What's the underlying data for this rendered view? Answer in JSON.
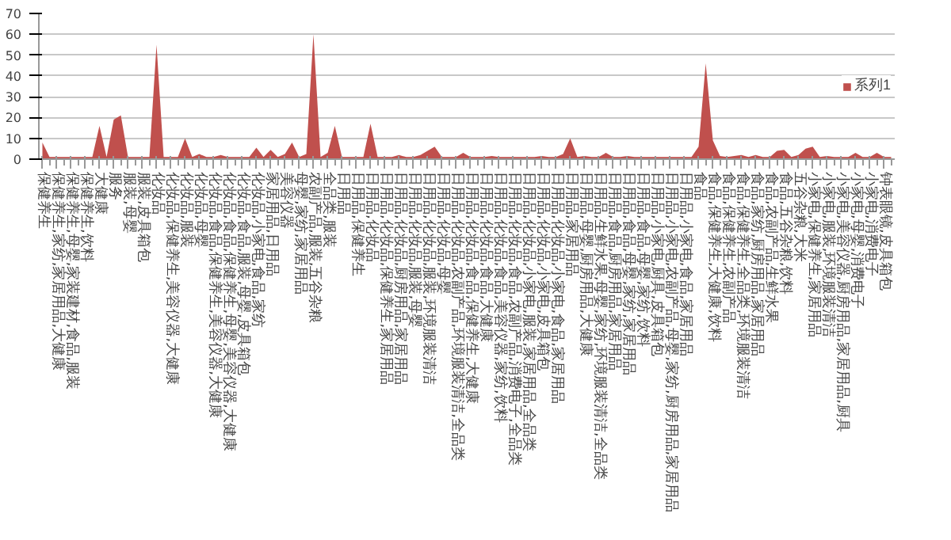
{
  "chart_data": {
    "type": "area",
    "categories": [
      "保健养生",
      null,
      "保健养生,家纺,家居用品,大健康",
      null,
      "保健养生,母婴,家装建材,食品,服装",
      null,
      "保健养生,饮料",
      null,
      "大健康",
      null,
      "服务",
      null,
      "服装,母婴",
      null,
      "服装,皮具箱包",
      null,
      "化妆品",
      null,
      "化妆品,保健养生,美容仪器,大健康",
      null,
      "化妆品,服装",
      null,
      "化妆品,母婴",
      null,
      "化妆品,食品,保健养生,美容仪器,大健康",
      null,
      "化妆品,食品,保健养生,母婴,美容仪器,大健康",
      null,
      "化妆品,食品,服装,母婴,皮具箱包",
      null,
      "化妆品,小家电,食品,家纺",
      null,
      "家居用品,日用品",
      null,
      "美容仪器",
      null,
      "母婴,家纺,家居用品",
      null,
      "农副产品,服装,五谷杂粮",
      null,
      "全品类,服装",
      null,
      "日用品",
      null,
      "日用品,保健养生",
      null,
      "日用品,化妆品",
      null,
      "日用品,化妆品,保健养生,家居用品",
      null,
      "日用品,化妆品,厨房用品,家居用品",
      null,
      "日用品,化妆品,服装,母婴",
      null,
      "日用品,化妆品,服装,环境服装清洁",
      null,
      "日用品,化妆品,母婴",
      null,
      "日用品,化妆品,农副产品,环境服装清洁,全品类",
      null,
      "日用品,化妆品,食品,保健养生,大健康",
      null,
      "日用品,化妆品,食品,大健康",
      null,
      "日用品,化妆品,食品,美容仪器,家纺,饮料",
      null,
      "日用品,化妆品,食品,农副产品,消费电子,全品类",
      null,
      "日用品,化妆品,小家电,服装,家居用品,全品类",
      null,
      "日用品,化妆品,小家电,皮具箱包",
      null,
      "日用品,化妆品,小家电,食品,家居用品",
      null,
      "日用品,家居用品",
      null,
      "日用品,母婴,厨房用品,大健康",
      null,
      "日用品,生鲜水果,母婴,家纺,环境服装清洁,全品类",
      null,
      "日用品,食品,厨房用品,家居用品",
      null,
      "日用品,食品,母婴,家纺,家居用品",
      null,
      "日用品,食品,母婴,家纺,饮料",
      null,
      "日用品,小家电,厨具,皮具箱包",
      null,
      "日用品,小家电,农副产品,母婴,家纺,厨房用品,家居用品",
      null,
      "日用品,小家电,食品,家居用品",
      null,
      "食品",
      null,
      "食品,保健养生,大健康,饮料",
      null,
      "食品,保健养生,农副产品",
      null,
      "食品,保健养生,全品类,环境服装清洁",
      null,
      "食品,家纺,厨房用品,家居用品",
      null,
      "食品,农副产品,生鲜水果",
      null,
      "食品,五谷杂粮,饮料",
      null,
      "五谷杂粮,大米",
      null,
      "小家电,保健养生,家居用品",
      null,
      "小家电,服装,环境服装清洁",
      null,
      "小家电,美容仪器,厨房用品,家居用品,厨具",
      null,
      "小家电,母婴,消费电子",
      null,
      "小家电,消费电子",
      null,
      "钟表眼镜,皮具箱包",
      null
    ],
    "series": [
      {
        "name": "系列1",
        "color": "#c0504d",
        "values": [
          8,
          1,
          1,
          1,
          1,
          1,
          1,
          1,
          16,
          1,
          19,
          21,
          1,
          1,
          1,
          1,
          55,
          1,
          1,
          1,
          10,
          1,
          2.5,
          1,
          1,
          2,
          1,
          1,
          1,
          1,
          5.5,
          1,
          4.5,
          1,
          2.5,
          8,
          1,
          2.5,
          60,
          1,
          3,
          16,
          1,
          1,
          1,
          1,
          17,
          1,
          1,
          1,
          2,
          1,
          1,
          2,
          4,
          6,
          1,
          1,
          1,
          3,
          1,
          1,
          1,
          1.5,
          1,
          1,
          1,
          1,
          1,
          1,
          1.5,
          1,
          1,
          2.5,
          10,
          1,
          1.5,
          1,
          1,
          3,
          1,
          1,
          1.5,
          1,
          1,
          1,
          1,
          1,
          1,
          1,
          1,
          1,
          6,
          46,
          9,
          1.5,
          1,
          1.5,
          2,
          1,
          2,
          1,
          1,
          4,
          4.5,
          1,
          2,
          5,
          6,
          1,
          1.5,
          1,
          1,
          1,
          3,
          1,
          1,
          3,
          1,
          1
        ]
      }
    ],
    "ylim": [
      0,
      70
    ],
    "yticks": [
      0,
      10,
      20,
      30,
      40,
      50,
      60,
      70
    ],
    "grid": "y",
    "legend": "right"
  }
}
